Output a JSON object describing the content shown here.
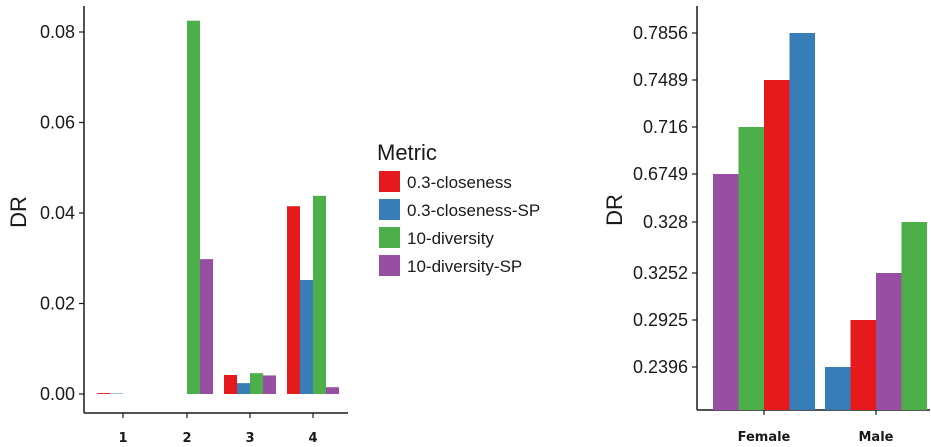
{
  "colors": {
    "0.3-closeness": "#e41a1c",
    "0.3-closeness-SP": "#377eb8",
    "10-diversity": "#4daf4a",
    "10-diversity-SP": "#984ea3",
    "axis": "#1a1a1a"
  },
  "legend": {
    "title": "Metric",
    "items": [
      "0.3-closeness",
      "0.3-closeness-SP",
      "10-diversity",
      "10-diversity-SP"
    ]
  },
  "chart_data": [
    {
      "type": "bar",
      "title": "",
      "xlabel": "",
      "ylabel": "DR",
      "categories": [
        "1",
        "2",
        "3",
        "4"
      ],
      "ylim": [
        0,
        0.09
      ],
      "yticks": [
        "0.00",
        "0.02",
        "0.04",
        "0.06",
        "0.08"
      ],
      "ytick_values": [
        0,
        0.02,
        0.04,
        0.06,
        0.08
      ],
      "series": [
        {
          "name": "0.3-closeness",
          "values": [
            0.0002,
            0,
            0.0042,
            0.0415
          ]
        },
        {
          "name": "0.3-closeness-SP",
          "values": [
            0.0001,
            0,
            0.0024,
            0.0252
          ]
        },
        {
          "name": "10-diversity",
          "values": [
            0,
            0.0825,
            0.0046,
            0.0438
          ]
        },
        {
          "name": "10-diversity-SP",
          "values": [
            0,
            0.0298,
            0.0041,
            0.0015
          ]
        }
      ],
      "grid": false,
      "legend_position": "right"
    },
    {
      "type": "bar",
      "title": "",
      "xlabel": "",
      "ylabel": "DR",
      "categories": [
        "Female",
        "Male"
      ],
      "scale": "categorical",
      "yticks": [
        "0.2396",
        "0.2925",
        "0.3252",
        "0.328",
        "0.6749",
        "0.716",
        "0.7489",
        "0.7856"
      ],
      "bars": [
        [
          {
            "series": "10-diversity-SP",
            "value": 0.6749
          },
          {
            "series": "10-diversity",
            "value": 0.716
          },
          {
            "series": "0.3-closeness",
            "value": 0.7489
          },
          {
            "series": "0.3-closeness-SP",
            "value": 0.7856
          }
        ],
        [
          {
            "series": "0.3-closeness-SP",
            "value": 0.2396
          },
          {
            "series": "0.3-closeness",
            "value": 0.2925
          },
          {
            "series": "10-diversity-SP",
            "value": 0.3252
          },
          {
            "series": "10-diversity",
            "value": 0.328
          }
        ]
      ],
      "grid": false
    }
  ]
}
